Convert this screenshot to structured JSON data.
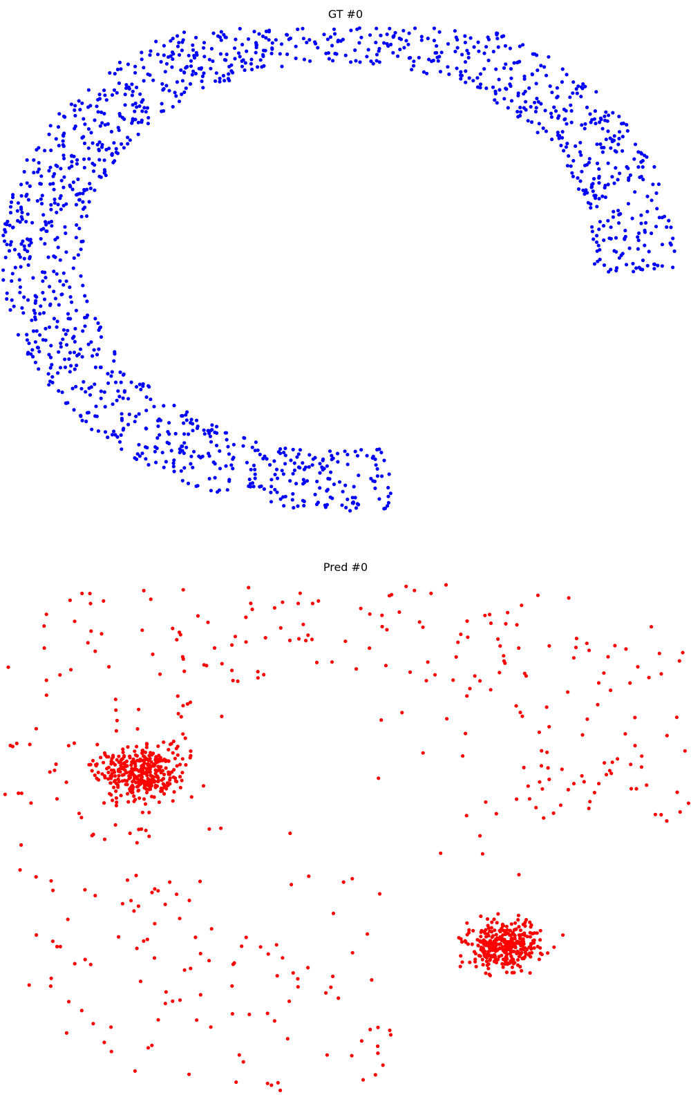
{
  "chart_data": [
    {
      "type": "scatter",
      "title": "GT #0",
      "axes_visible": false,
      "grid": false,
      "color": "#0000ff",
      "shape": "arc",
      "n_points": 1500,
      "arc": {
        "center": [
          490,
          330
        ],
        "radius": 335,
        "band_width": 92,
        "start_angle_deg": -118,
        "end_angle_deg": 8,
        "vertical_scale": 0.95
      }
    },
    {
      "type": "scatter",
      "title": "Pred #0",
      "axes_visible": false,
      "grid": false,
      "color": "#ff0000",
      "shape": "two-clusters-with-scattered-arc",
      "clusters": [
        {
          "center": [
            208,
            319
          ],
          "spread": [
            28,
            20
          ],
          "n_points": 350
        },
        {
          "center": [
            728,
            569
          ],
          "spread": [
            26,
            18
          ],
          "n_points": 350
        }
      ],
      "scatter": {
        "n_points": 420,
        "center": [
          490,
          330
        ],
        "radius": 335,
        "band_width": 240
      }
    }
  ]
}
